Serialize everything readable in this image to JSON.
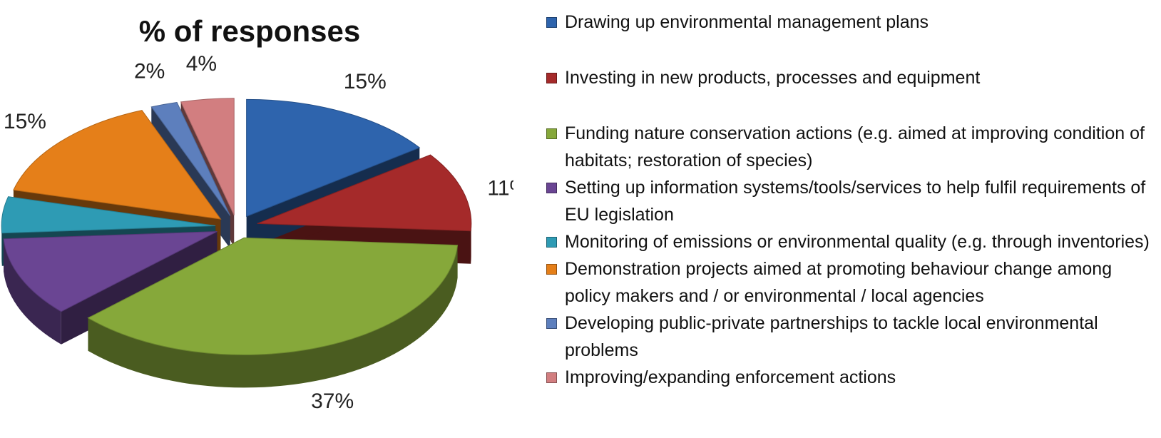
{
  "chart_data": {
    "type": "pie",
    "title": "% of responses",
    "data_label_suffix": "%",
    "legend_position": "right",
    "series": [
      {
        "name": "Drawing up environmental management plans",
        "value": 15,
        "color": "#2e64ad"
      },
      {
        "name": "Investing in new products, processes and equipment",
        "value": 11,
        "color": "#a52a2a"
      },
      {
        "name": "Funding nature conservation actions (e.g. aimed at improving condition of habitats; restoration of species)",
        "value": 37,
        "color": "#86a83a"
      },
      {
        "name": "Setting up information systems/tools/services to help fulfil requirements of EU legislation",
        "value": 11,
        "color": "#6a4593"
      },
      {
        "name": "Monitoring of emissions or environmental quality (e.g. through inventories)",
        "value": 5,
        "color": "#2e9bb4"
      },
      {
        "name": "Demonstration projects aimed at promoting behaviour change among policy makers and / or environmental / local agencies",
        "value": 15,
        "color": "#e57f19"
      },
      {
        "name": "Developing public-private partnerships to tackle local environmental problems",
        "value": 2,
        "color": "#5d7fbd"
      },
      {
        "name": "Improving/expanding enforcement actions",
        "value": 4,
        "color": "#d27e80"
      }
    ]
  }
}
